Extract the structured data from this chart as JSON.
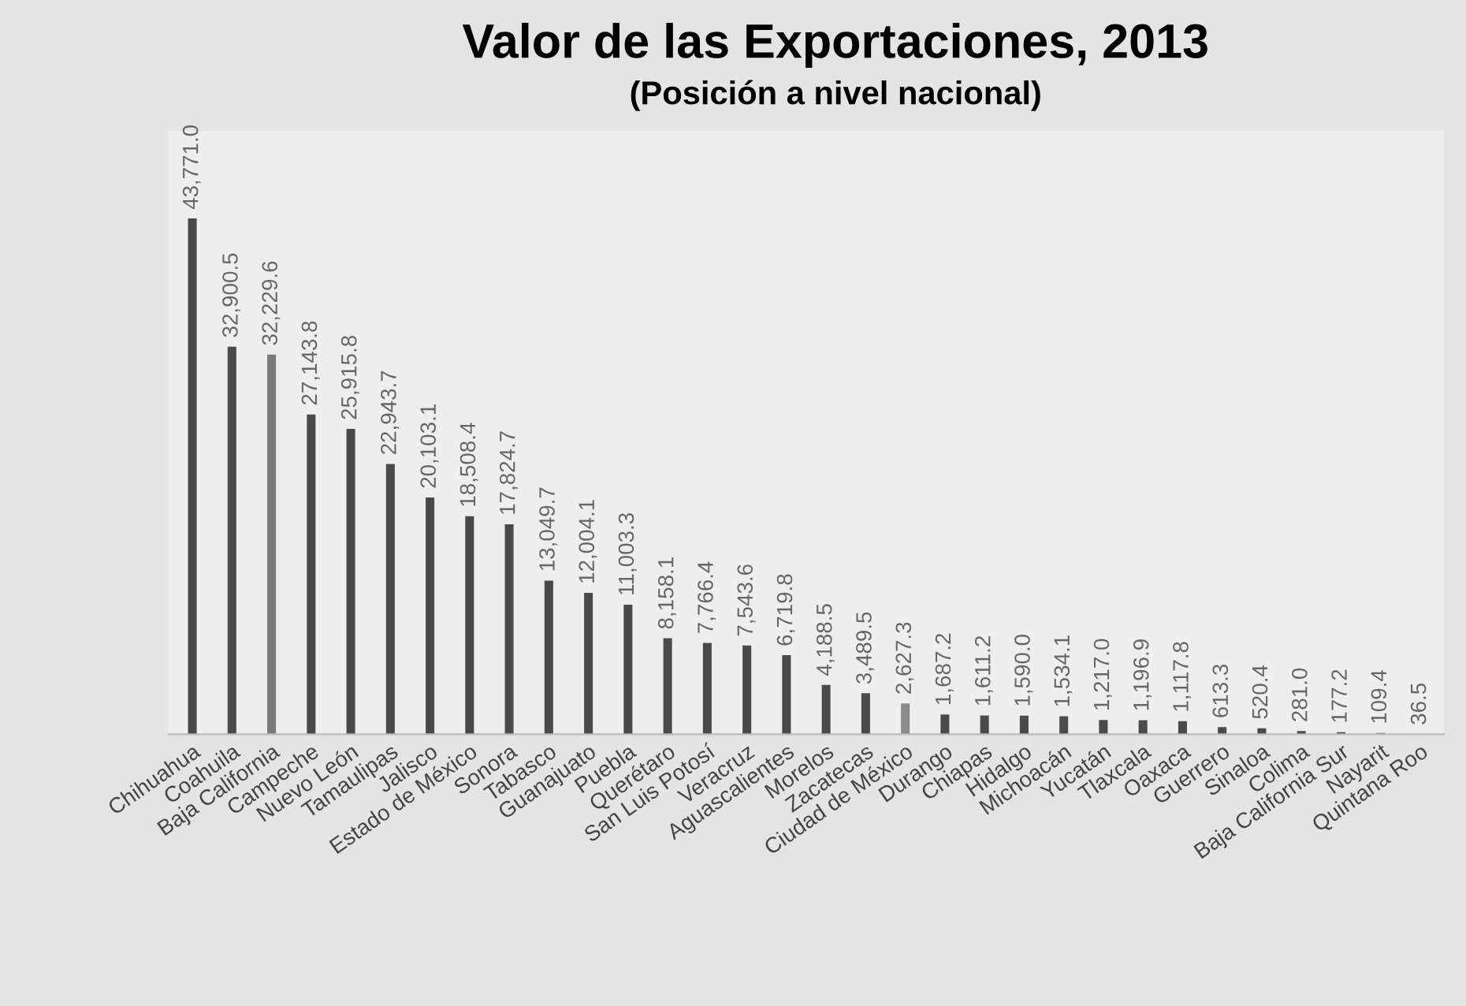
{
  "chart_data": {
    "type": "bar",
    "title": "Valor de las Exportaciones, 2013",
    "subtitle": "(Posición a nivel nacional)",
    "categories": [
      "Chihuahua",
      "Coahuila",
      "Baja California",
      "Campeche",
      "Nuevo León",
      "Tamaulipas",
      "Jalisco",
      "Estado de México",
      "Sonora",
      "Tabasco",
      "Guanajuato",
      "Puebla",
      "Querétaro",
      "San Luis Potosí",
      "Veracruz",
      "Aguascalientes",
      "Morelos",
      "Zacatecas",
      "Ciudad de México",
      "Durango",
      "Chiapas",
      "Hidalgo",
      "Michoacán",
      "Yucatán",
      "Tlaxcala",
      "Oaxaca",
      "Guerrero",
      "Sinaloa",
      "Colima",
      "Baja California Sur",
      "Nayarit",
      "Quintana Roo"
    ],
    "values": [
      43771.0,
      32900.5,
      32229.6,
      27143.8,
      25915.8,
      22943.7,
      20103.1,
      18508.4,
      17824.7,
      13049.7,
      12004.1,
      11003.3,
      8158.1,
      7766.4,
      7543.6,
      6719.8,
      4188.5,
      3489.5,
      2627.3,
      1687.2,
      1611.2,
      1590.0,
      1534.1,
      1217.0,
      1196.9,
      1117.8,
      613.3,
      520.4,
      281.0,
      177.2,
      109.4,
      36.5
    ],
    "value_labels": [
      "43,771.0",
      "32,900.5",
      "32,229.6",
      "27,143.8",
      "25,915.8",
      "22,943.7",
      "20,103.1",
      "18,508.4",
      "17,824.7",
      "13,049.7",
      "12,004.1",
      "11,003.3",
      "8,158.1",
      "7,766.4",
      "7,543.6",
      "6,719.8",
      "4,188.5",
      "3,489.5",
      "2,627.3",
      "1,687.2",
      "1,611.2",
      "1,590.0",
      "1,534.1",
      "1,217.0",
      "1,196.9",
      "1,117.8",
      "613.3",
      "520.4",
      "281.0",
      "177.2",
      "109.4",
      "36.5"
    ],
    "colors": [
      "#4a4a4a",
      "#4a4a4a",
      "#7a7a7a",
      "#4a4a4a",
      "#4a4a4a",
      "#4a4a4a",
      "#4a4a4a",
      "#4a4a4a",
      "#4a4a4a",
      "#4a4a4a",
      "#4a4a4a",
      "#4a4a4a",
      "#4a4a4a",
      "#4a4a4a",
      "#4a4a4a",
      "#4a4a4a",
      "#4a4a4a",
      "#4a4a4a",
      "#8a8a8a",
      "#4a4a4a",
      "#4a4a4a",
      "#4a4a4a",
      "#4a4a4a",
      "#4a4a4a",
      "#4a4a4a",
      "#4a4a4a",
      "#4a4a4a",
      "#4a4a4a",
      "#4a4a4a",
      "#4a4a4a",
      "#4a4a4a",
      "#4a4a4a"
    ],
    "grid": false,
    "legend": false
  }
}
